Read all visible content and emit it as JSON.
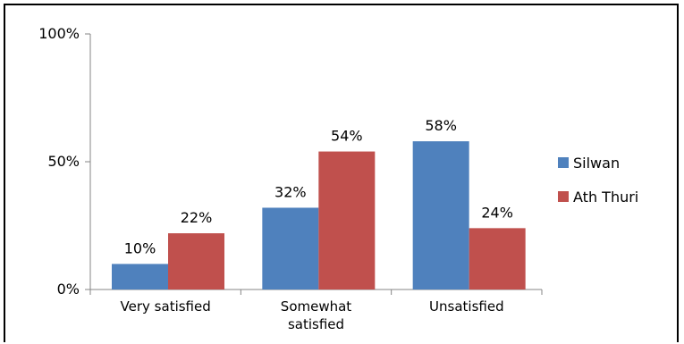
{
  "chart_data": {
    "type": "bar",
    "categories": [
      [
        "Very satisfied"
      ],
      [
        "Somewhat",
        "satisfied"
      ],
      [
        "Unsatisfied"
      ]
    ],
    "series": [
      {
        "name": "Silwan",
        "values": [
          10,
          32,
          58
        ],
        "labels": [
          "10%",
          "32%",
          "58%"
        ],
        "color": "#4F81BD"
      },
      {
        "name": "Ath Thuri",
        "values": [
          22,
          54,
          24
        ],
        "labels": [
          "22%",
          "54%",
          "24%"
        ],
        "color": "#C0504D"
      }
    ],
    "ylim": [
      0,
      100
    ],
    "yticks": [
      {
        "value": 0,
        "label": "0%"
      },
      {
        "value": 50,
        "label": "50%"
      },
      {
        "value": 100,
        "label": "100%"
      }
    ],
    "grid": false,
    "legend_position": "right"
  }
}
